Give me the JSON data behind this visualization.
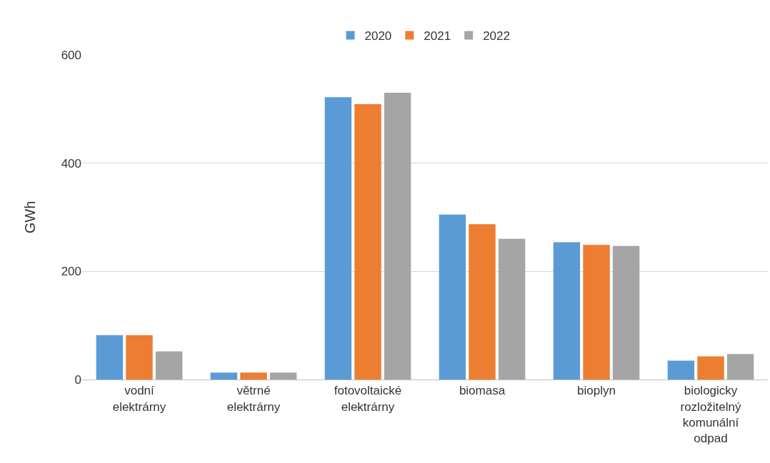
{
  "chart_data": {
    "type": "bar",
    "ylabel": "GWh",
    "categories": [
      "vodní elektrárny",
      "větrné elektrárny",
      "fotovoltaické elektrárny",
      "biomasa",
      "bioplyn",
      "biologicky rozložitelný komunální odpad"
    ],
    "series": [
      {
        "name": "2020",
        "color": "#5b9bd5",
        "values": [
          82,
          13,
          522,
          305,
          254,
          35
        ]
      },
      {
        "name": "2021",
        "color": "#ed7d31",
        "values": [
          82,
          13,
          509,
          287,
          249,
          43
        ]
      },
      {
        "name": "2022",
        "color": "#a5a5a5",
        "values": [
          52,
          13,
          530,
          260,
          247,
          47
        ]
      }
    ],
    "ylim": [
      0,
      600
    ],
    "yticks": [
      0,
      200,
      400,
      600
    ],
    "grid": "y",
    "legend": "top"
  }
}
